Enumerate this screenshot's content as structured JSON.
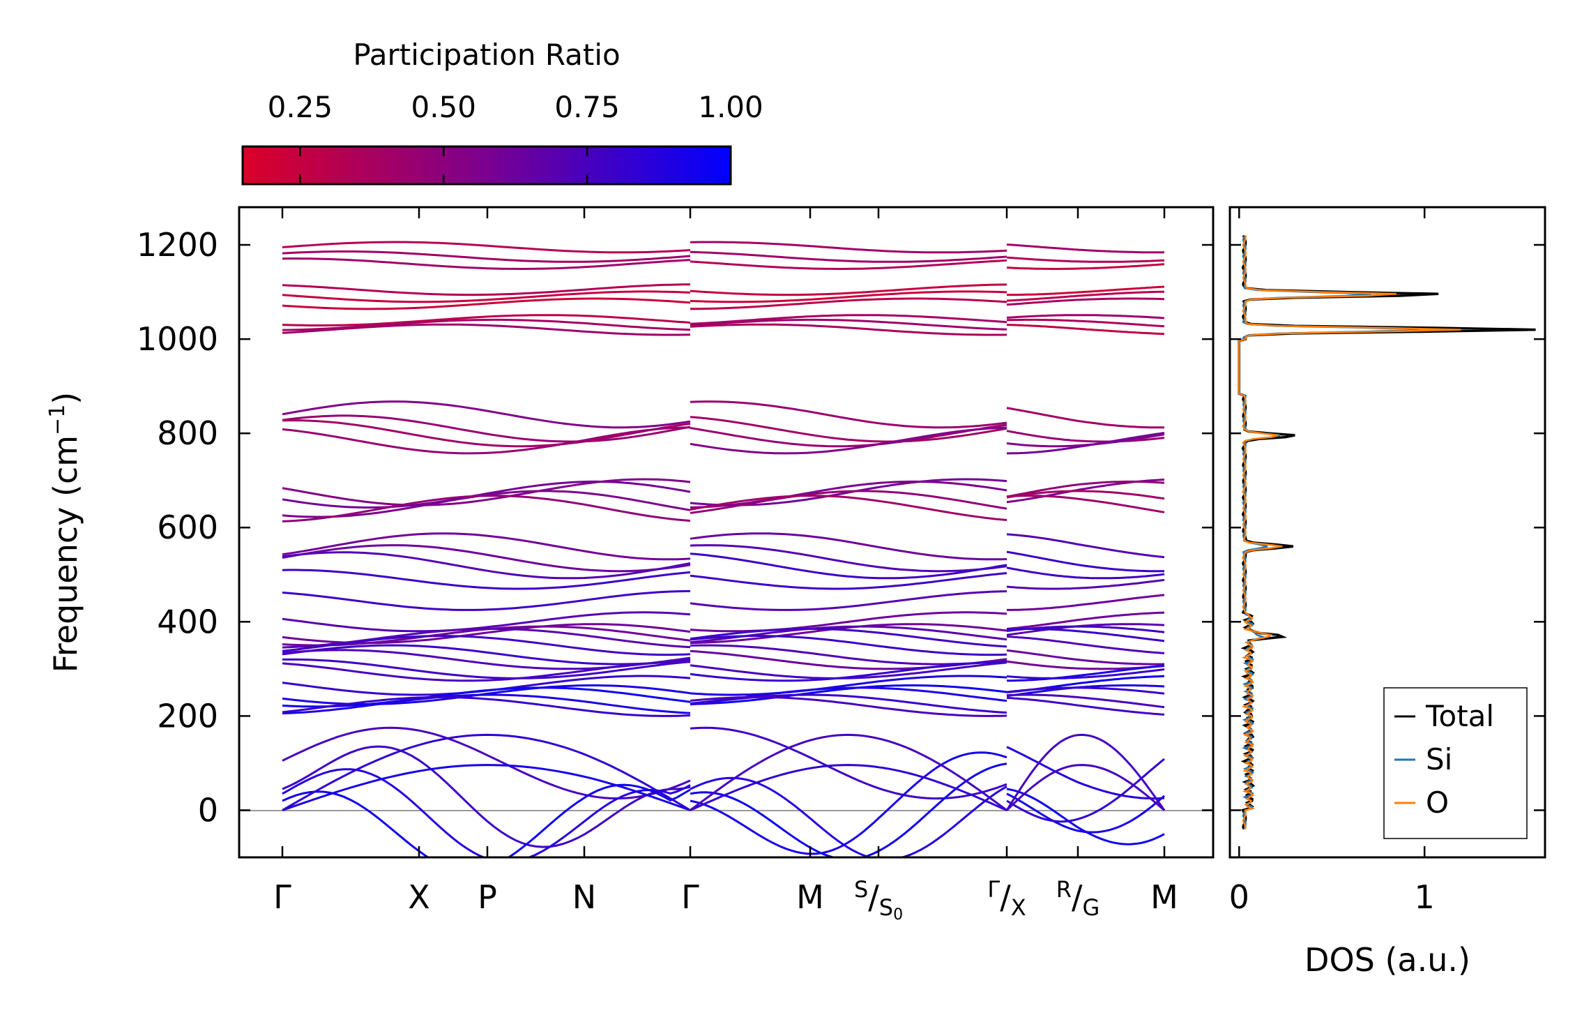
{
  "chart_data": [
    {
      "type": "line",
      "subtype": "phonon-band-structure",
      "ylabel": "Frequency (cm",
      "ylabel_sup": "−1",
      "ylabel_close": ")",
      "ylim": [
        -100,
        1280
      ],
      "yticks": [
        0,
        200,
        400,
        600,
        800,
        1000,
        1200
      ],
      "path_segments": [
        {
          "name": "Γ-X-P-N-Γ-M-S",
          "x_range": [
            0,
            5.0
          ],
          "ticks": [
            {
              "x": 0.0,
              "label": "Γ"
            },
            {
              "x": 1.0,
              "label": "X"
            },
            {
              "x": 1.5,
              "label": "P"
            },
            {
              "x": 2.2,
              "label": "N"
            },
            {
              "x": 3.0,
              "label": "Γ"
            }
          ]
        },
        {
          "name": "S0-Γ",
          "x_range": [
            3.0,
            5.25
          ],
          "ticks": [
            {
              "x": 3.85,
              "label": "M"
            },
            {
              "x": 4.35,
              "label": "S",
              "sub_label": "S",
              "sub_index": "0"
            },
            {
              "x": 5.25,
              "label": "Γ",
              "sub_label": "X"
            }
          ]
        },
        {
          "name": "X-R-G-M",
          "x_range": [
            5.25,
            6.4
          ],
          "ticks": [
            {
              "x": 5.8,
              "label": "R",
              "sub_label": "G"
            },
            {
              "x": 6.4,
              "label": "M"
            }
          ]
        }
      ],
      "high_symmetry_labels": [
        "Γ",
        "X",
        "P",
        "N",
        "Γ",
        "M",
        "S/S0",
        "Γ/X",
        "R/G",
        "M"
      ],
      "bands_cm1_at_gamma": [
        1195,
        1175,
        1160,
        1105,
        1090,
        1075,
        1040,
        1030,
        1020,
        840,
        810,
        800,
        785,
        675,
        670,
        650,
        640,
        560,
        535,
        520,
        490,
        445,
        400,
        375,
        370,
        365,
        350,
        330,
        320,
        300,
        295,
        265,
        245,
        240,
        225,
        220,
        100,
        45,
        35,
        20,
        0,
        0
      ],
      "colorbar": {
        "title": "Participation Ratio",
        "min": 0.15,
        "max": 1.0,
        "ticks": [
          "0.25",
          "0.50",
          "0.75",
          "1.00"
        ],
        "color_low": "#dc0028",
        "color_mid": "#7a0090",
        "color_high": "#0000ff"
      }
    },
    {
      "type": "line",
      "subtype": "density-of-states",
      "xlabel": "DOS (a.u.)",
      "xticks": [
        "0",
        "1"
      ],
      "xlim": [
        -0.05,
        1.65
      ],
      "legend_position": "bottom-right",
      "series": [
        {
          "name": "Total",
          "color": "#000000"
        },
        {
          "name": "Si",
          "color": "#1f77b4"
        },
        {
          "name": "O",
          "color": "#ff7f0e"
        }
      ],
      "peaks_cm1": [
        {
          "freq": 1020,
          "total": 1.57,
          "si": 1.0,
          "o": 1.17
        },
        {
          "freq": 1095,
          "total": 1.07,
          "si": 0.7,
          "o": 0.85
        },
        {
          "freq": 795,
          "total": 0.28,
          "si": 0.2,
          "o": 0.18
        },
        {
          "freq": 560,
          "total": 0.27,
          "si": 0.12,
          "o": 0.2
        },
        {
          "freq": 370,
          "total": 0.18,
          "si": 0.08,
          "o": 0.13
        }
      ]
    }
  ]
}
